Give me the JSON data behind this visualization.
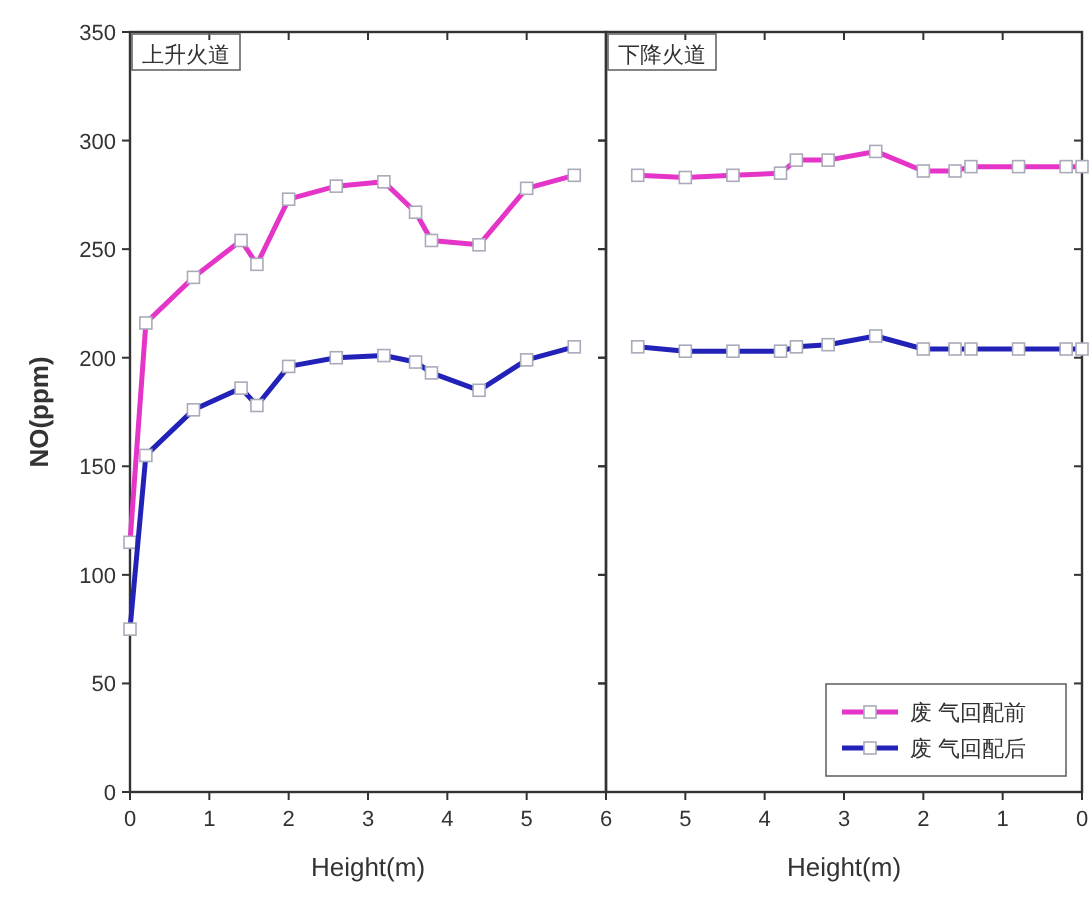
{
  "chart_data": [
    {
      "type": "line",
      "annotations": [
        "上升火道"
      ],
      "xlabel": "Height(m)",
      "ylabel": "NO(ppm)",
      "xlim": [
        0,
        6
      ],
      "xticks": [
        0,
        1,
        2,
        3,
        4,
        5
      ],
      "ylim": [
        0,
        350
      ],
      "yticks": [
        0,
        50,
        100,
        150,
        200,
        250,
        300,
        350
      ],
      "marker": "square",
      "line_style": "solid",
      "x": [
        0,
        0.2,
        0.8,
        1.4,
        1.6,
        2.0,
        2.6,
        3.2,
        3.6,
        3.8,
        4.4,
        5.0,
        5.6
      ],
      "series": [
        {
          "color": "#e535c8",
          "values": [
            115,
            216,
            237,
            254,
            243,
            273,
            279,
            281,
            267,
            254,
            252,
            278,
            284
          ]
        },
        {
          "color": "#2222b8",
          "values": [
            75,
            155,
            176,
            186,
            178,
            196,
            200,
            201,
            198,
            193,
            185,
            199,
            205
          ]
        }
      ]
    },
    {
      "type": "line",
      "annotations": [
        "下降火道"
      ],
      "xlabel": "Height(m)",
      "xlim": [
        6,
        0
      ],
      "xticks": [
        6,
        5,
        4,
        3,
        2,
        1,
        0
      ],
      "ylim": [
        0,
        350
      ],
      "yticks": [
        0,
        50,
        100,
        150,
        200,
        250,
        300,
        350
      ],
      "tick_labels": "x",
      "marker": "square",
      "line_style": "solid",
      "legend": "bottom right",
      "x": [
        5.6,
        5.0,
        4.4,
        3.8,
        3.6,
        3.2,
        2.6,
        2.0,
        1.6,
        1.4,
        0.8,
        0.2,
        0
      ],
      "series": [
        {
          "name": "废 气回配前",
          "color": "#e535c8",
          "values": [
            284,
            283,
            284,
            285,
            291,
            291,
            295,
            286,
            286,
            288,
            288,
            288,
            288
          ]
        },
        {
          "name": "废 气回配后",
          "color": "#2222b8",
          "values": [
            205,
            203,
            203,
            203,
            205,
            206,
            210,
            204,
            204,
            204,
            204,
            204,
            204
          ]
        }
      ]
    }
  ]
}
